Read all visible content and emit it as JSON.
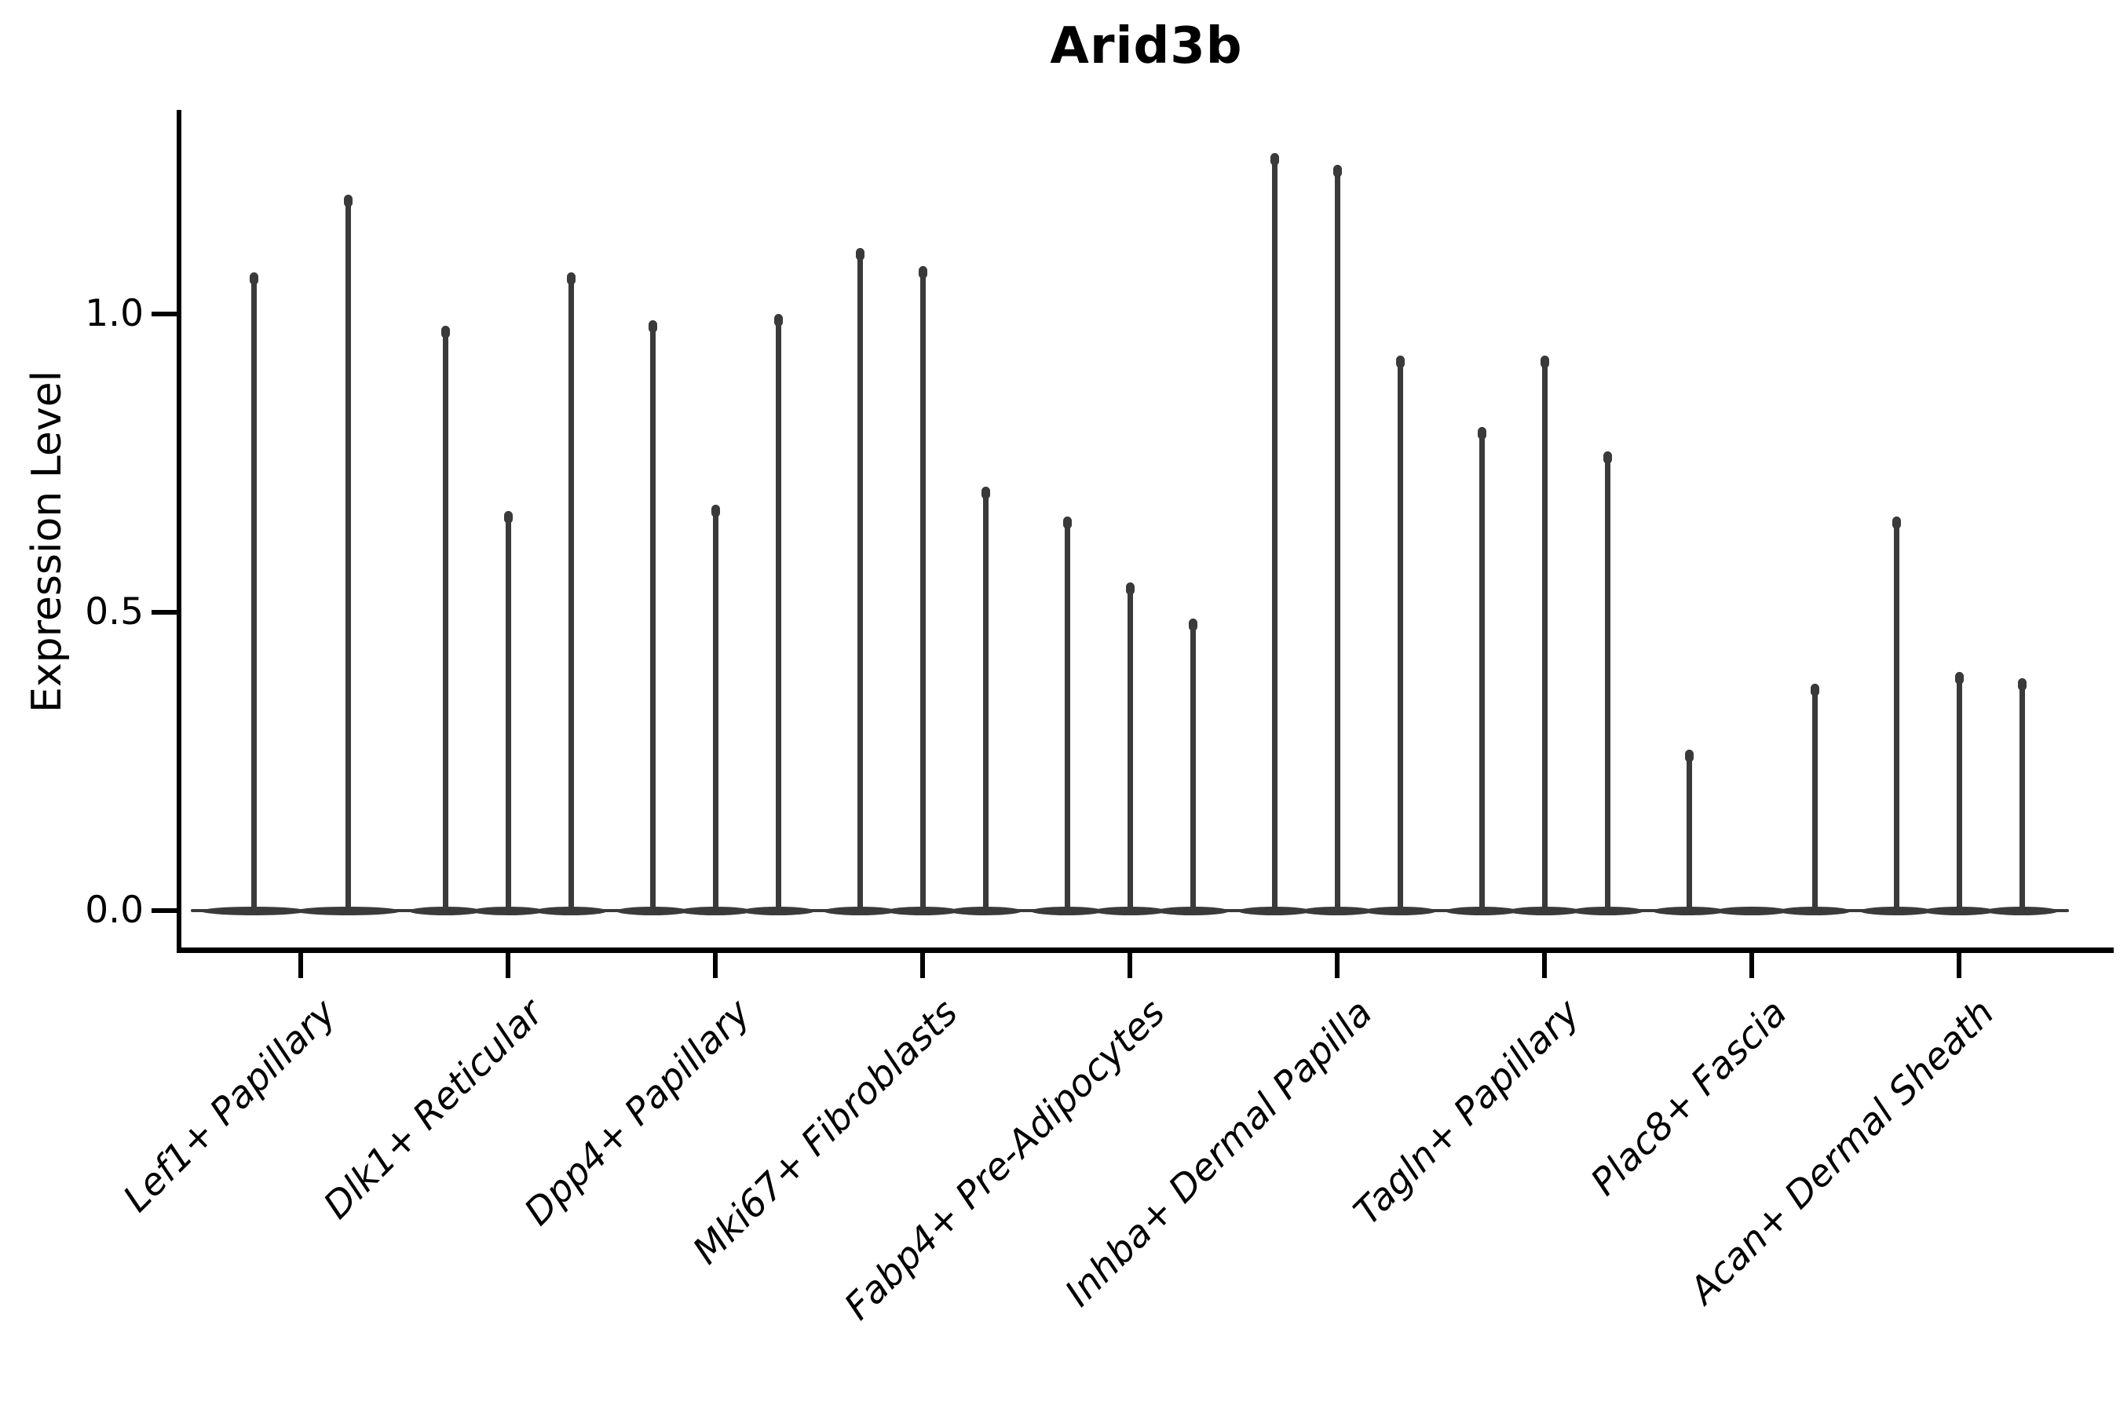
{
  "title": "Arid3b",
  "y_axis": {
    "label": "Expression Level",
    "ticks": [
      {
        "label": "1.0",
        "value": 1.0
      },
      {
        "label": "0.5",
        "value": 0.5
      },
      {
        "label": "0.0",
        "value": 0.0
      }
    ]
  },
  "chart_data": {
    "type": "violin",
    "title": "Arid3b",
    "xlabel": "",
    "ylabel": "Expression Level",
    "ylim": [
      -0.07,
      1.34
    ],
    "yticks": [
      0.0,
      0.5,
      1.0
    ],
    "grid": false,
    "legend": "none",
    "style_note": "Sparse single-cell expression violins: each violin is a wide flat lens at 0 (most cells have zero expression) with a thin vertical spike reaching the category maximum; dark gray (#3a3a3a) on white, black axes, no top/right spines.",
    "categories": [
      "Lef1+ Papillary",
      "Dlk1+ Reticular",
      "Dpp4+ Papillary",
      "Mki67+ Fibroblasts",
      "Fabp4+ Pre-Adipocytes",
      "Inhba+ Dermal Papilla",
      "Tagln+ Papillary",
      "Plac8+ Fascia",
      "Acan+ Dermal Sheath"
    ],
    "groups": [
      {
        "category": "Lef1+ Papillary",
        "violins": [
          {
            "max": 1.07
          },
          {
            "max": 1.2
          }
        ]
      },
      {
        "category": "Dlk1+ Reticular",
        "violins": [
          {
            "max": 0.98
          },
          {
            "max": 0.67
          },
          {
            "max": 1.07
          }
        ]
      },
      {
        "category": "Dpp4+ Papillary",
        "violins": [
          {
            "max": 0.99
          },
          {
            "max": 0.68
          },
          {
            "max": 1.0
          }
        ]
      },
      {
        "category": "Mki67+ Fibroblasts",
        "violins": [
          {
            "max": 1.11
          },
          {
            "max": 1.08
          },
          {
            "max": 0.71
          }
        ]
      },
      {
        "category": "Fabp4+ Pre-Adipocytes",
        "violins": [
          {
            "max": 0.66
          },
          {
            "max": 0.55
          },
          {
            "max": 0.49
          }
        ]
      },
      {
        "category": "Inhba+ Dermal Papilla",
        "violins": [
          {
            "max": 1.27
          },
          {
            "max": 1.25
          },
          {
            "max": 0.93
          }
        ]
      },
      {
        "category": "Tagln+ Papillary",
        "violins": [
          {
            "max": 0.81
          },
          {
            "max": 0.93
          },
          {
            "max": 0.77
          }
        ]
      },
      {
        "category": "Plac8+ Fascia",
        "violins": [
          {
            "max": 0.27
          },
          {
            "max": 0.0
          },
          {
            "max": 0.38
          }
        ]
      },
      {
        "category": "Acan+ Dermal Sheath",
        "violins": [
          {
            "max": 0.66
          },
          {
            "max": 0.4
          },
          {
            "max": 0.39
          }
        ]
      }
    ],
    "colors": {
      "violin": "#3a3a3a",
      "axis": "#000000",
      "text": "#000000",
      "background": "#ffffff"
    }
  }
}
